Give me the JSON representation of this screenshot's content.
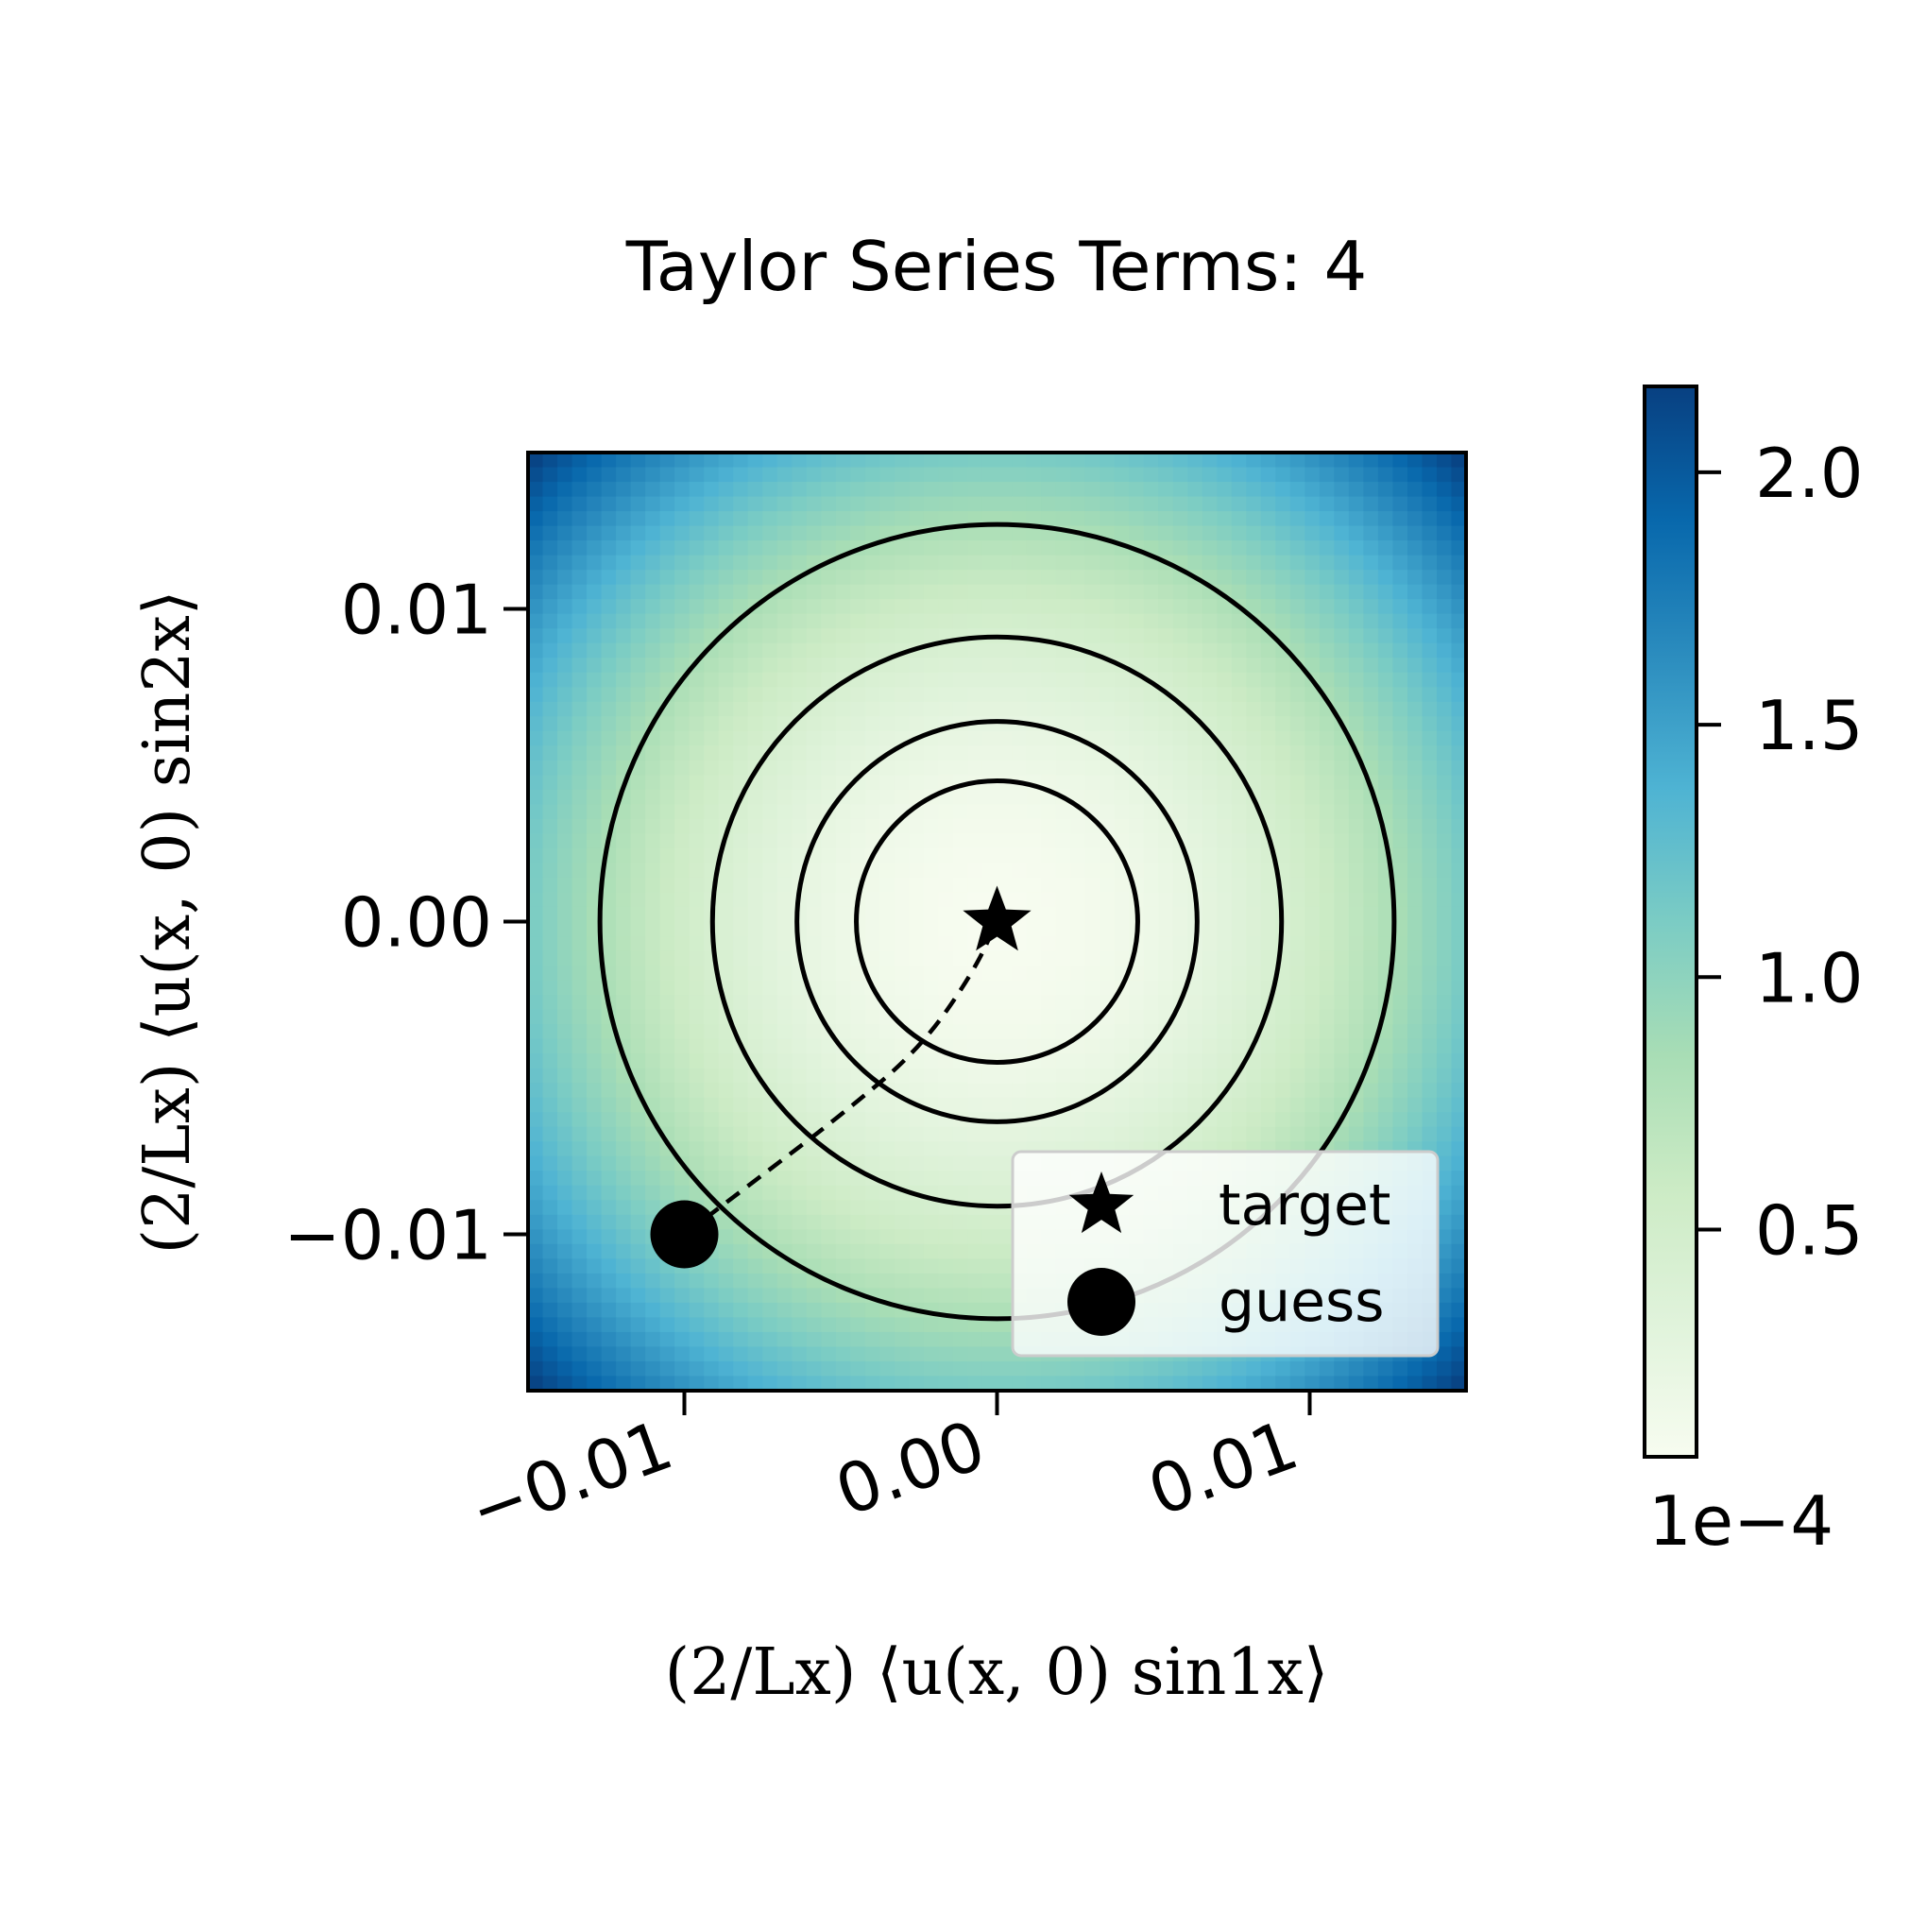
{
  "chart_data": {
    "type": "heatmap",
    "title": "Taylor Series Terms: 4",
    "xlabel": "(2/Lx) ⟨u(x, 0) sin1x⟩",
    "ylabel": "(2/Lx) ⟨u(x, 0) sin2x⟩",
    "xlim": [
      -0.015,
      0.015
    ],
    "ylim": [
      -0.015,
      0.015
    ],
    "x_ticks": [
      -0.01,
      0.0,
      0.01
    ],
    "x_tick_labels": [
      "−0.01",
      "0.00",
      "0.01"
    ],
    "y_ticks": [
      -0.01,
      0.0,
      0.01
    ],
    "y_tick_labels": [
      "−0.01",
      "0.00",
      "0.01"
    ],
    "x_tick_rotation_deg": 20,
    "grid": false,
    "colormap": "GnBu",
    "colormap_stops": [
      "#f7fcf0",
      "#e0f3db",
      "#ccebc5",
      "#a8ddb5",
      "#7bccc4",
      "#4eb3d3",
      "#2b8cbe",
      "#0868ac",
      "#084081"
    ],
    "heatmap_function": "value = 1e-4 * (r^2 / 0.015^2) * 1.08",
    "heatmap_resolution": 64,
    "colorbar": {
      "range": [
        0.05,
        2.17
      ],
      "ticks": [
        0.5,
        1.0,
        1.5,
        2.0
      ],
      "tick_labels": [
        "0.5",
        "1.0",
        "1.5",
        "2.0"
      ],
      "offset_text": "1e−4"
    },
    "contours": [
      {
        "center": [
          0.0,
          0.0
        ],
        "radius": 0.0045
      },
      {
        "center": [
          0.0,
          0.0
        ],
        "radius": 0.0064
      },
      {
        "center": [
          0.0,
          0.0
        ],
        "radius": 0.0091
      },
      {
        "center": [
          0.0,
          0.0
        ],
        "radius": 0.0127
      }
    ],
    "path": {
      "style": "dashed",
      "points": [
        [
          -0.01,
          -0.01
        ],
        [
          -0.0075,
          -0.0081
        ],
        [
          -0.005,
          -0.0062
        ],
        [
          -0.0025,
          -0.0041
        ],
        [
          -0.0008,
          -0.0017
        ],
        [
          0.0,
          0.0
        ]
      ]
    },
    "series": [
      {
        "name": "target",
        "marker": "star",
        "points": [
          [
            0.0,
            0.0
          ]
        ]
      },
      {
        "name": "guess",
        "marker": "circle",
        "points": [
          [
            -0.01,
            -0.01
          ]
        ]
      }
    ],
    "legend": {
      "placement": "lower-right",
      "entries": [
        "target",
        "guess"
      ]
    }
  }
}
